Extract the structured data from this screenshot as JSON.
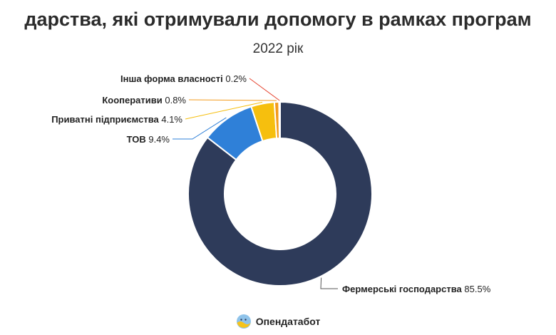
{
  "chart_data": {
    "type": "pie",
    "title": "дарства, які отримували допомогу в рамках програм",
    "subtitle": "2022 рік",
    "categories": [
      "Фермерські господарства",
      "ТОВ",
      "Приватні підприємства",
      "Кооперативи",
      "Інша форма власності"
    ],
    "values": [
      85.5,
      9.4,
      4.1,
      0.8,
      0.2
    ],
    "value_labels": [
      "85.5%",
      "9.4%",
      "4.1%",
      "0.8%",
      "0.2%"
    ],
    "colors": [
      "#2e3b5a",
      "#2f80d8",
      "#f6bf0e",
      "#f39a1b",
      "#e5432f"
    ],
    "donut": true
  },
  "brand": {
    "name": "Опендатабот",
    "logo_icon": "opendatabot-logo-icon"
  }
}
